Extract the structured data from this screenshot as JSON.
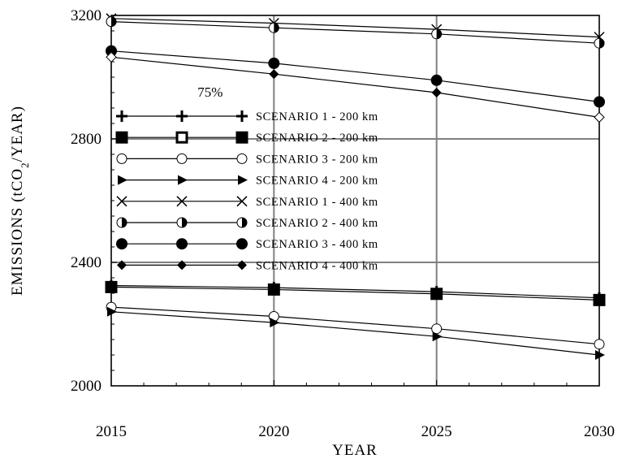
{
  "chart_data": {
    "type": "line",
    "title": "",
    "xlabel": "YEAR",
    "ylabel": "EMISSIONS (tCO2/YEAR)",
    "x": [
      2015,
      2020,
      2025,
      2030
    ],
    "xlim": [
      2015,
      2030
    ],
    "ylim": [
      2000,
      3200
    ],
    "xticks": [
      2015,
      2020,
      2025,
      2030
    ],
    "yticks": [
      2000,
      2400,
      2800,
      3200
    ],
    "grid": true,
    "legend_position": "left",
    "annotations": [
      {
        "text": "75%",
        "x": 2019.2,
        "y": 2960
      }
    ],
    "series": [
      {
        "name": "SCENARIO 1 - 200 km",
        "marker": "plus",
        "values": [
          2325,
          2318,
          2305,
          2285
        ]
      },
      {
        "name": "SCENARIO 2 - 200 km",
        "marker": "square-open",
        "values": [
          2320,
          2312,
          2298,
          2278
        ]
      },
      {
        "name": "SCENARIO 3 - 200 km",
        "marker": "circle-open",
        "values": [
          2255,
          2225,
          2185,
          2135
        ]
      },
      {
        "name": "SCENARIO 4 - 200 km",
        "marker": "triangle-right",
        "values": [
          2240,
          2205,
          2160,
          2100
        ]
      },
      {
        "name": "SCENARIO 1 - 400 km",
        "marker": "x",
        "values": [
          3190,
          3175,
          3155,
          3130
        ]
      },
      {
        "name": "SCENARIO 2 - 400 km",
        "marker": "circle-half",
        "values": [
          3180,
          3160,
          3140,
          3110
        ]
      },
      {
        "name": "SCENARIO 3 - 400 km",
        "marker": "circle-filled",
        "values": [
          3085,
          3045,
          2990,
          2920
        ]
      },
      {
        "name": "SCENARIO 4 - 400 km",
        "marker": "diamond",
        "values": [
          3065,
          3010,
          2950,
          2870
        ]
      }
    ]
  }
}
